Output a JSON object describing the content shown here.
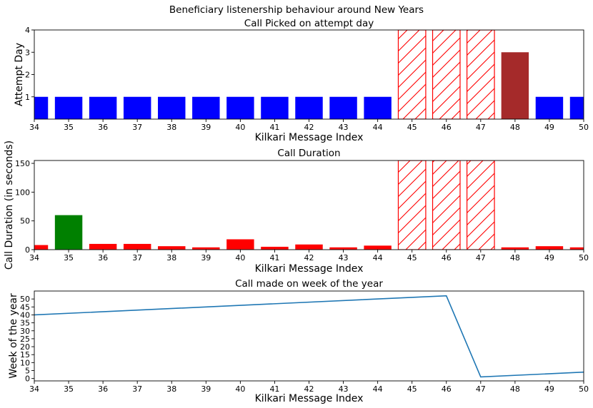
{
  "figure": {
    "suptitle": "Beneficiary listenership behaviour around New Years"
  },
  "colors": {
    "picked": "#0000ff",
    "delayed": "#a52a2a",
    "hatch": "#ff0000",
    "long_call": "#008000",
    "short_call": "#ff0000",
    "line": "#1f77b4"
  },
  "chart_data": [
    {
      "type": "bar",
      "title": "Call Picked on attempt day",
      "xlabel": "Kilkari Message Index",
      "ylabel": "Attempt Day",
      "xlim": [
        34,
        50
      ],
      "ylim": [
        0,
        4
      ],
      "yticks": [
        1,
        2,
        3,
        4
      ],
      "categories": [
        34,
        35,
        36,
        37,
        38,
        39,
        40,
        41,
        42,
        43,
        44,
        45,
        46,
        47,
        48,
        49,
        50
      ],
      "values": [
        1,
        1,
        1,
        1,
        1,
        1,
        1,
        1,
        1,
        1,
        1,
        4,
        4,
        4,
        3,
        1,
        1
      ],
      "status": [
        "picked",
        "picked",
        "picked",
        "picked",
        "picked",
        "picked",
        "picked",
        "picked",
        "picked",
        "picked",
        "picked",
        "missing",
        "missing",
        "missing",
        "delayed",
        "picked",
        "picked"
      ]
    },
    {
      "type": "bar",
      "title": "Call Duration",
      "xlabel": "Kilkari Message Index",
      "ylabel": "Call Duration (in seconds)",
      "xlim": [
        34,
        50
      ],
      "ylim": [
        0,
        155
      ],
      "yticks": [
        0,
        50,
        100,
        150
      ],
      "categories": [
        34,
        35,
        36,
        37,
        38,
        39,
        40,
        41,
        42,
        43,
        44,
        45,
        46,
        47,
        48,
        49,
        50
      ],
      "values": [
        8,
        60,
        10,
        10,
        6,
        4,
        18,
        5,
        9,
        4,
        7,
        155,
        155,
        155,
        4,
        6,
        4
      ],
      "status": [
        "short",
        "long",
        "short",
        "short",
        "short",
        "short",
        "short",
        "short",
        "short",
        "short",
        "short",
        "missing",
        "missing",
        "missing",
        "short",
        "short",
        "short"
      ]
    },
    {
      "type": "line",
      "title": "Call made on week of the year",
      "xlabel": "Kilkari Message Index",
      "ylabel": "Week of the year",
      "xlim": [
        34,
        50
      ],
      "ylim": [
        -1.5,
        55
      ],
      "yticks": [
        0,
        5,
        10,
        15,
        20,
        25,
        30,
        35,
        40,
        45,
        50
      ],
      "x": [
        34,
        46,
        47,
        50
      ],
      "y": [
        40,
        52,
        1,
        4
      ]
    }
  ]
}
